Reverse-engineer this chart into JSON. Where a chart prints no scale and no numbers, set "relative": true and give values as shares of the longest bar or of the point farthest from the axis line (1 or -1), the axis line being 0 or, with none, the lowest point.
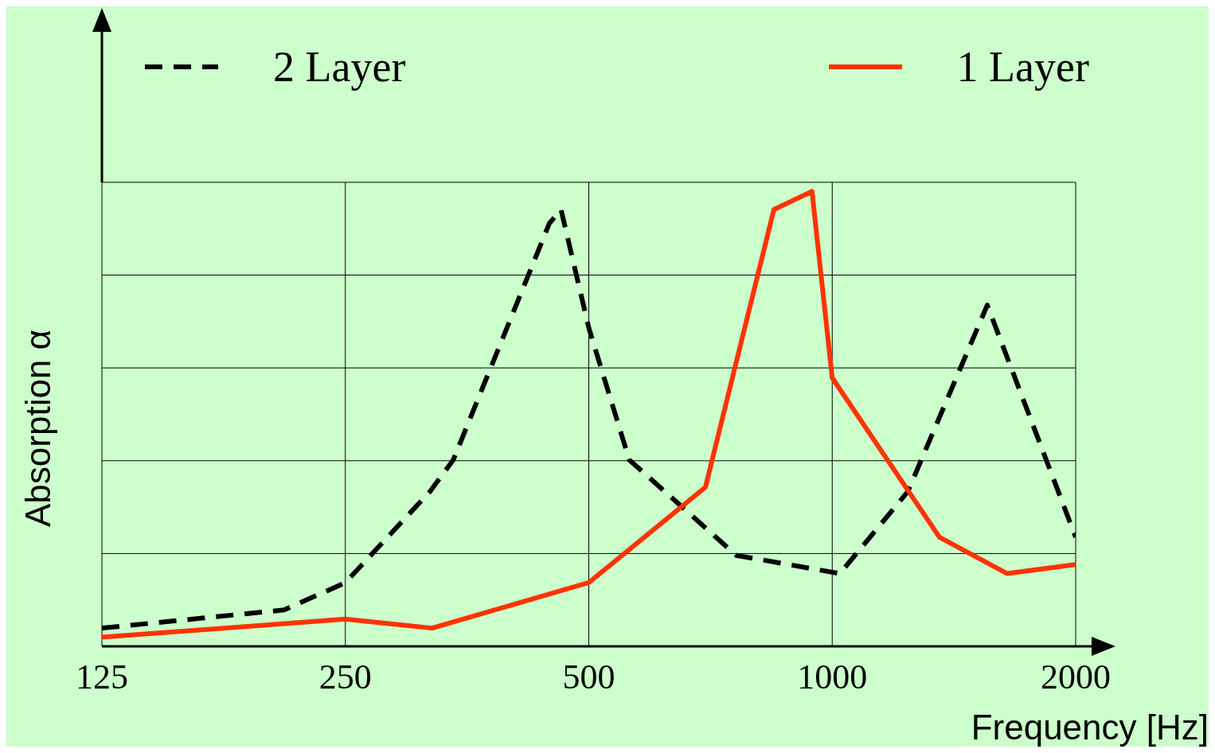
{
  "chart_data": {
    "type": "line",
    "relative": true,
    "xlabel": "Frequency [Hz]",
    "ylabel": "Absorption α",
    "log": "x",
    "xlim": [
      125,
      2000
    ],
    "xticks": [
      125,
      250,
      500,
      1000,
      2000
    ],
    "grid": true,
    "legend": "top",
    "series": [
      {
        "name": "2 Layer",
        "color": "#000000",
        "line_style": "dashed",
        "x": [
          125,
          210,
          250,
          318,
          340,
          447,
          462,
          500,
          561,
          761,
          1022,
          1240,
          1555,
          2000
        ],
        "values": [
          0.04,
          0.08,
          0.14,
          0.34,
          0.41,
          0.93,
          0.96,
          0.7,
          0.41,
          0.2,
          0.16,
          0.34,
          0.75,
          0.24
        ]
      },
      {
        "name": "1 Layer",
        "color": "#ff3300",
        "line_style": "solid",
        "x": [
          125,
          250,
          320,
          500,
          697,
          847,
          944,
          1000,
          1357,
          1646,
          2000
        ],
        "values": [
          0.02,
          0.06,
          0.04,
          0.14,
          0.35,
          0.96,
          1,
          0.59,
          0.24,
          0.16,
          0.18
        ]
      }
    ]
  }
}
